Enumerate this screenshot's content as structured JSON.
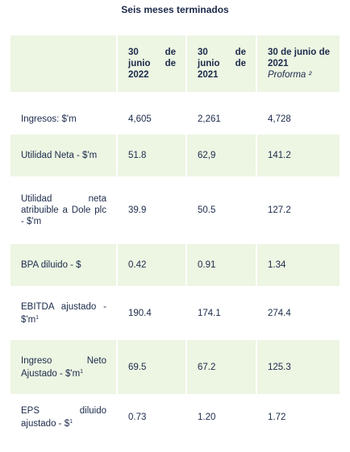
{
  "caption": "Seis meses terminados",
  "columns": [
    {
      "label": "30 de junio de 2022",
      "sub": ""
    },
    {
      "label": "30 de junio de 2021",
      "sub": ""
    },
    {
      "label": "30 de junio de 2021",
      "sub": "Proforma ²"
    }
  ],
  "rows": [
    {
      "label": "Ingresos: $'m",
      "note": "",
      "values": [
        "4,605",
        "2,261",
        "4,728"
      ]
    },
    {
      "label": "Utilidad Neta - $'m",
      "note": "",
      "values": [
        "51.8",
        "62,9",
        "141.2"
      ]
    },
    {
      "label": "Utilidad neta atribuible a Dole plc - $'m",
      "note": "",
      "values": [
        "39.9",
        "50.5",
        "127.2"
      ]
    },
    {
      "label": "BPA diluido - $",
      "note": "",
      "values": [
        "0.42",
        "0.91",
        "1.34"
      ]
    },
    {
      "label": "EBITDA ajustado - $'m",
      "note": "1",
      "values": [
        "190.4",
        "174.1",
        "274.4"
      ]
    },
    {
      "label": "Ingreso Neto Ajustado - $'m",
      "note": "1",
      "values": [
        "69.5",
        "67.2",
        "125.3"
      ]
    },
    {
      "label": "EPS diluido ajustado - $",
      "note": "1",
      "values": [
        "0.73",
        "1.20",
        "1.72"
      ]
    }
  ]
}
